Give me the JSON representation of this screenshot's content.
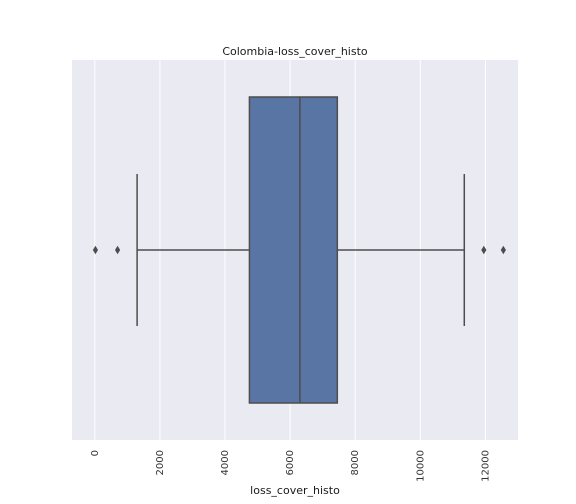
{
  "chart_data": {
    "type": "boxplot",
    "orientation": "horizontal",
    "title": "Colombia-loss_cover_histo",
    "xlabel": "loss_cover_histo",
    "ylabel": "",
    "xlim": [
      -700,
      13000
    ],
    "xticks": [
      0,
      2000,
      4000,
      6000,
      8000,
      10000,
      12000
    ],
    "tick_rotation": 90,
    "grid": true,
    "box": {
      "whisker_low": 1300,
      "q1": 4750,
      "median": 6300,
      "q3": 7450,
      "whisker_high": 11350,
      "outliers": [
        20,
        700,
        11950,
        12550
      ]
    },
    "colors": {
      "background": "#eaeaf2",
      "box_fill": "#5875a4",
      "line": "#4d4d4d"
    }
  }
}
